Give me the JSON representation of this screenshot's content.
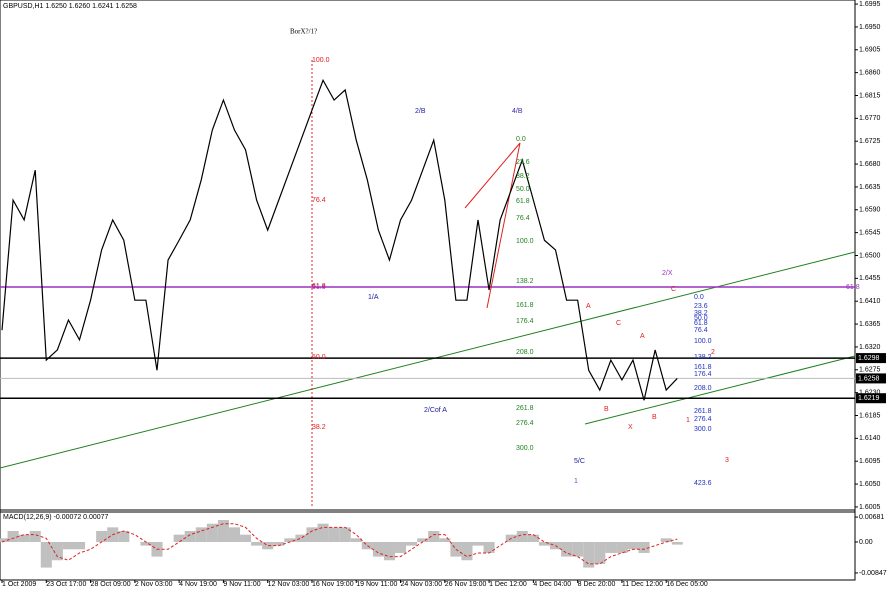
{
  "chart_data": [
    {
      "type": "line",
      "title": "GBPUSD,H1  1.6250 1.6260 1.6241 1.6258",
      "color": "#000000",
      "values": [
        1.6353,
        1.6609,
        1.657,
        1.6668,
        1.6294,
        1.6314,
        1.6373,
        1.6334,
        1.6412,
        1.6511,
        1.657,
        1.653,
        1.6412,
        1.6412,
        1.6274,
        1.6491,
        1.653,
        1.657,
        1.6649,
        1.6747,
        1.6806,
        1.6747,
        1.6708,
        1.6609,
        1.655,
        1.6609,
        1.6668,
        1.6727,
        1.6786,
        1.6845,
        1.6806,
        1.6826,
        1.6727,
        1.6649,
        1.655,
        1.6491,
        1.657,
        1.6609,
        1.6668,
        1.6727,
        1.6609,
        1.6412,
        1.6412,
        1.657,
        1.6432,
        1.657,
        1.6629,
        1.6688,
        1.6609,
        1.653,
        1.6511,
        1.6412,
        1.6412,
        1.6274,
        1.6235,
        1.6294,
        1.6255,
        1.6294,
        1.6215,
        1.6314,
        1.6235,
        1.6258
      ],
      "xticks": [
        {
          "value": 0,
          "label": "1 Oct 2009"
        },
        {
          "value": 4,
          "label": "23 Oct 17:00"
        },
        {
          "value": 8,
          "label": "28 Oct 09:00"
        },
        {
          "value": 12,
          "label": "2 Nov 03:00"
        },
        {
          "value": 16,
          "label": "4 Nov 19:00"
        },
        {
          "value": 20,
          "label": "9 Nov 11:00"
        },
        {
          "value": 24,
          "label": "12 Nov 03:00"
        },
        {
          "value": 28,
          "label": "16 Nov 19:00"
        },
        {
          "value": 32,
          "label": "19 Nov 11:00"
        },
        {
          "value": 36,
          "label": "24 Nov 03:00"
        },
        {
          "value": 40,
          "label": "26 Nov 19:00"
        },
        {
          "value": 44,
          "label": "1 Dec 12:00"
        },
        {
          "value": 48,
          "label": "4 Dec 04:00"
        },
        {
          "value": 52,
          "label": "8 Dec 20:00"
        },
        {
          "value": 56,
          "label": "11 Dec 12:00"
        },
        {
          "value": 60,
          "label": "16 Dec 05:00"
        }
      ],
      "ylim": [
        1.5995,
        1.7003
      ],
      "yticks": [
        1.6995,
        {
          "value": 1.695,
          "label": "1.6950"
        },
        1.6905,
        {
          "value": 1.686,
          "label": "1.6860"
        },
        1.6815,
        {
          "value": 1.677,
          "label": "1.6770"
        },
        1.6725,
        {
          "value": 1.668,
          "label": "1.6680"
        },
        1.6635,
        {
          "value": 1.659,
          "label": "1.6590"
        },
        1.6545,
        {
          "value": 1.65,
          "label": "1.6500"
        },
        1.6455,
        {
          "value": 1.641,
          "label": "1.6410"
        },
        1.6365,
        {
          "value": 1.632,
          "label": "1.6320"
        },
        1.6275,
        {
          "value": 1.623,
          "label": "1.6230"
        },
        1.6185,
        {
          "value": 1.614,
          "label": "1.6140"
        },
        1.6095,
        {
          "value": 1.605,
          "label": "1.6050"
        },
        1.6005
      ],
      "price_marks": [
        1.6298,
        1.6258,
        1.6219
      ],
      "annotations": [
        {
          "text": "BorX?/1?",
          "color": "#000000"
        },
        {
          "text": "2/B",
          "color": "#1a1a9c"
        },
        {
          "text": "4/B",
          "color": "#3a2aa8"
        },
        {
          "text": "1/A",
          "color": "#1a1a9c"
        },
        {
          "text": "2/X",
          "color": "#9b30c0"
        },
        {
          "text": "C",
          "color": "#e02020"
        },
        {
          "text": "A",
          "color": "#e02020"
        },
        {
          "text": "C",
          "color": "#e02020"
        },
        {
          "text": "A",
          "color": "#e02020"
        },
        {
          "text": "2",
          "color": "#e02020"
        },
        {
          "text": "2/Cof A",
          "color": "#1a1a9c"
        },
        {
          "text": "B",
          "color": "#e02020"
        },
        {
          "text": "X",
          "color": "#e02020"
        },
        {
          "text": "B",
          "color": "#e02020"
        },
        {
          "text": "1",
          "color": "#e02020"
        },
        {
          "text": "3",
          "color": "#e02020"
        },
        {
          "text": "5/C",
          "color": "#1a1a9c"
        },
        {
          "text": "1",
          "color": "#9b30c0"
        }
      ],
      "fib_groups": [
        {
          "color": "#e02020",
          "labels": [
            "100.0",
            "76.4",
            "61.8",
            "50.0",
            "38.2"
          ]
        },
        {
          "color": "#208020",
          "labels": [
            "0.0",
            "23.6",
            "38.2",
            "50.0",
            "61.8",
            "76.4",
            "100.0",
            "138.2",
            "161.8",
            "176.4",
            "208.0",
            "261.8",
            "276.4",
            "300.0"
          ]
        },
        {
          "color": "#2030c0",
          "labels": [
            "0.0",
            "23.6",
            "38.2",
            "50.0",
            "61.8",
            "76.4",
            "100.0",
            "138.2",
            "161.8",
            "176.4",
            "208.0",
            "261.8",
            "276.4",
            "300.0",
            "423.6"
          ]
        },
        {
          "color": "#9b30c0",
          "labels": [
            "61.8",
            "61.8"
          ]
        }
      ]
    },
    {
      "type": "macd",
      "title": "MACD(12,26,9) -0.00072 0.00077",
      "series": [
        {
          "values": [
            0.001,
            0.003,
            0.002,
            0.003,
            -0.007,
            -0.005,
            -0.002,
            -0.002,
            0,
            0.003,
            0.004,
            0.003,
            0,
            -0.001,
            -0.004,
            0,
            0.002,
            0.003,
            0.004,
            0.005,
            0.006,
            0.004,
            0.002,
            -0.001,
            -0.002,
            -0.001,
            0.001,
            0.002,
            0.004,
            0.005,
            0.004,
            0.004,
            0.001,
            -0.002,
            -0.004,
            -0.005,
            -0.003,
            -0.001,
            0.001,
            0.003,
            0.001,
            -0.004,
            -0.005,
            -0.001,
            -0.003,
            0,
            0.002,
            0.003,
            0.002,
            -0.001,
            -0.002,
            -0.004,
            -0.004,
            -0.007,
            -0.006,
            -0.003,
            -0.003,
            -0.002,
            -0.003,
            0,
            0.001,
            -0.00072
          ],
          "color": "#c0c0c0"
        },
        {
          "values": [
            0,
            0.001,
            0.002,
            0.002,
            0.001,
            -0.004,
            -0.005,
            -0.003,
            -0.002,
            0,
            0.002,
            0.003,
            0.002,
            0,
            -0.002,
            -0.002,
            0,
            0.002,
            0.003,
            0.004,
            0.005,
            0.005,
            0.004,
            0.001,
            -0.001,
            -0.001,
            0,
            0.001,
            0.003,
            0.004,
            0.004,
            0.004,
            0.002,
            -0.001,
            -0.003,
            -0.004,
            -0.004,
            -0.002,
            0,
            0.002,
            0.002,
            -0.002,
            -0.004,
            -0.003,
            -0.003,
            -0.001,
            0.001,
            0.002,
            0.002,
            0,
            -0.001,
            -0.003,
            -0.004,
            -0.006,
            -0.006,
            -0.004,
            -0.003,
            -0.002,
            -0.002,
            -0.001,
            0,
            0.00077
          ],
          "color": "#e02020"
        }
      ],
      "ylim": [
        -0.0104,
        0.0082
      ],
      "yticks": [
        0.00681,
        {
          "value": 0,
          "label": "0.00"
        },
        -0.00847
      ]
    }
  ]
}
